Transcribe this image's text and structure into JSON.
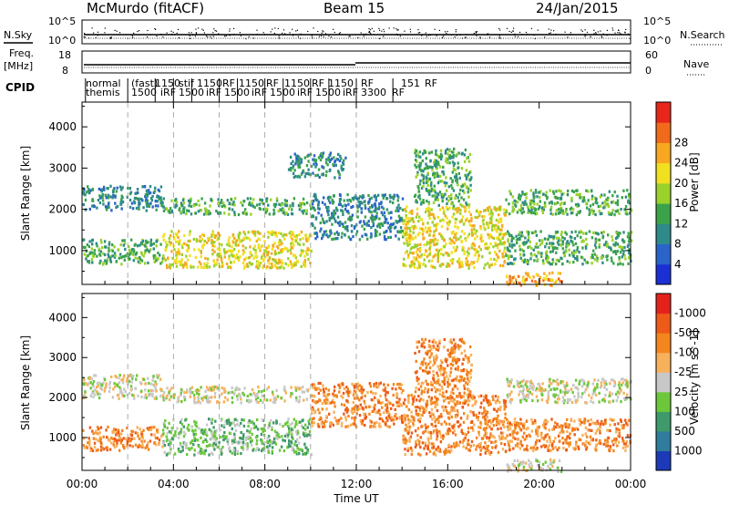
{
  "header": {
    "station": "McMurdo (fitACF)",
    "beam": "Beam 15",
    "date": "24/Jan/2015"
  },
  "top_panels": {
    "nsky_label": "N.Sky",
    "nsky_ticks": [
      "10^5",
      "10^0"
    ],
    "nsearch_label": "N.Search",
    "nsearch_ticks": [
      "10^5",
      "10^0"
    ],
    "freq_label": "Freq.",
    "freq_unit": "[MHz]",
    "freq_ticks": [
      "18",
      "8"
    ],
    "nave_label": "Nave",
    "nave_ticks": [
      "60",
      "0"
    ],
    "cpid_label": "CPID"
  },
  "cpid_labels": {
    "row1": [
      "normal",
      "(fast)",
      "1150",
      "stif",
      "1150",
      "RF",
      "1150",
      "RF",
      "1150",
      "RF",
      "1150",
      "RF",
      "151",
      "RF"
    ],
    "row2": [
      "themis",
      "1500",
      "iRF",
      "1500",
      "iRF",
      "1500",
      "iRF",
      "1500",
      "iRF",
      "1500",
      "iRF",
      "3300",
      "RF"
    ]
  },
  "x_axis": {
    "title": "Time UT",
    "ticks": [
      "00:00",
      "04:00",
      "08:00",
      "12:00",
      "16:00",
      "20:00",
      "00:00"
    ]
  },
  "chart_data": [
    {
      "type": "heatmap",
      "name": "power",
      "ylabel": "Slant Range [km]",
      "ylim": [
        180,
        4600
      ],
      "yticks": [
        1000,
        2000,
        3000,
        4000
      ],
      "xlim_hours": [
        0,
        24
      ],
      "colorbar": {
        "label": "Power [dB]",
        "ticks": [
          "4",
          "8",
          "12",
          "16",
          "20",
          "24",
          "28"
        ],
        "colors": [
          "#1b2fd4",
          "#2a64c8",
          "#2f8a8a",
          "#3aa34a",
          "#9ad12b",
          "#f0e020",
          "#f8a820",
          "#f06a1c",
          "#e8261a"
        ]
      },
      "scatter_bands": [
        {
          "t0": 0.0,
          "t1": 3.5,
          "r0": 2000,
          "r1": 2600,
          "level": 2
        },
        {
          "t0": 0.0,
          "t1": 3.5,
          "r0": 700,
          "r1": 1300,
          "level": 3
        },
        {
          "t0": 3.5,
          "t1": 10.0,
          "r0": 1900,
          "r1": 2300,
          "level": 3
        },
        {
          "t0": 3.5,
          "t1": 10.0,
          "r0": 600,
          "r1": 1500,
          "level": 5
        },
        {
          "t0": 9.0,
          "t1": 11.5,
          "r0": 2800,
          "r1": 3400,
          "level": 2
        },
        {
          "t0": 10.0,
          "t1": 14.0,
          "r0": 1300,
          "r1": 2400,
          "level": 2
        },
        {
          "t0": 14.0,
          "t1": 18.5,
          "r0": 600,
          "r1": 2100,
          "level": 5
        },
        {
          "t0": 14.5,
          "t1": 17.0,
          "r0": 2100,
          "r1": 3500,
          "level": 3
        },
        {
          "t0": 18.5,
          "t1": 24.0,
          "r0": 1900,
          "r1": 2500,
          "level": 3
        },
        {
          "t0": 18.5,
          "t1": 24.0,
          "r0": 700,
          "r1": 1500,
          "level": 3
        },
        {
          "t0": 18.5,
          "t1": 21.0,
          "r0": 180,
          "r1": 500,
          "level": 6
        }
      ]
    },
    {
      "type": "heatmap",
      "name": "velocity",
      "ylabel": "Slant Range [km]",
      "ylim": [
        180,
        4600
      ],
      "yticks": [
        1000,
        2000,
        3000,
        4000
      ],
      "xlim_hours": [
        0,
        24
      ],
      "colorbar": {
        "label": "Velocity [m s^-1]",
        "ticks": [
          "1000",
          "500",
          "100",
          "25",
          "-25",
          "-100",
          "-500",
          "-1000"
        ],
        "colors": [
          "#1c3ab8",
          "#2f7c9c",
          "#3e9a6a",
          "#6cc83a",
          "#c8c8c8",
          "#f7b15a",
          "#f3861e",
          "#ee5a18",
          "#e4221c"
        ]
      },
      "scatter_bands": [
        {
          "t0": 0.0,
          "t1": 3.5,
          "r0": 2000,
          "r1": 2600,
          "level": 4
        },
        {
          "t0": 0.0,
          "t1": 3.5,
          "r0": 700,
          "r1": 1300,
          "level": 6
        },
        {
          "t0": 3.5,
          "t1": 10.0,
          "r0": 1900,
          "r1": 2300,
          "level": 4
        },
        {
          "t0": 3.5,
          "t1": 10.0,
          "r0": 600,
          "r1": 1500,
          "level": 3
        },
        {
          "t0": 10.0,
          "t1": 14.0,
          "r0": 1300,
          "r1": 2400,
          "level": 6
        },
        {
          "t0": 14.0,
          "t1": 18.5,
          "r0": 600,
          "r1": 2100,
          "level": 6
        },
        {
          "t0": 14.5,
          "t1": 17.0,
          "r0": 2100,
          "r1": 3500,
          "level": 6
        },
        {
          "t0": 18.5,
          "t1": 24.0,
          "r0": 1900,
          "r1": 2500,
          "level": 4
        },
        {
          "t0": 18.5,
          "t1": 24.0,
          "r0": 700,
          "r1": 1500,
          "level": 6
        },
        {
          "t0": 18.5,
          "t1": 21.0,
          "r0": 180,
          "r1": 500,
          "level": 4
        }
      ]
    }
  ],
  "cpid_change_hours": [
    2.0,
    4.0,
    6.0,
    8.0,
    10.0,
    12.0
  ]
}
